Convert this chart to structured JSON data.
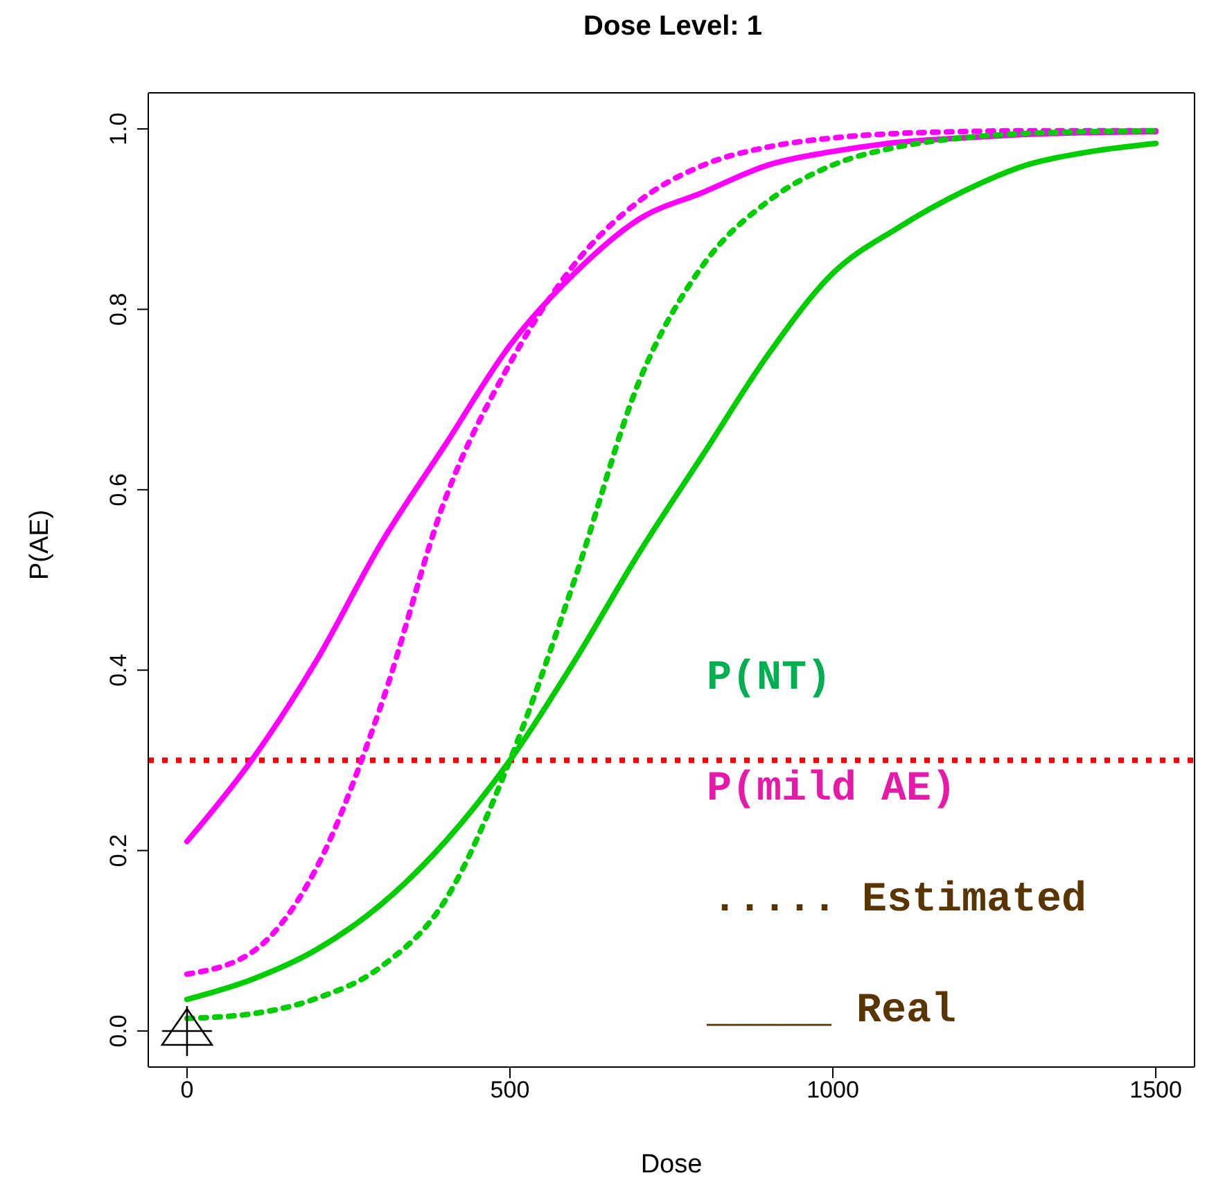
{
  "chart_data": {
    "type": "line",
    "title": "Dose Level: 1",
    "xlabel": "Dose",
    "ylabel": "P(AE)",
    "x": [
      0,
      100,
      200,
      300,
      400,
      500,
      600,
      700,
      800,
      900,
      1000,
      1100,
      1200,
      1300,
      1400,
      1500
    ],
    "series": [
      {
        "color": "#ff00ff",
        "line_style": "solid",
        "values": [
          0.21,
          0.3,
          0.41,
          0.54,
          0.65,
          0.76,
          0.84,
          0.9,
          0.93,
          0.96,
          0.975,
          0.985,
          0.99,
          0.994,
          0.996,
          0.997
        ]
      },
      {
        "color": "#ff00ff",
        "line_style": "dotted",
        "values": [
          0.063,
          0.087,
          0.18,
          0.36,
          0.59,
          0.74,
          0.85,
          0.92,
          0.96,
          0.98,
          0.99,
          0.995,
          0.997,
          0.998,
          0.998,
          0.998
        ]
      },
      {
        "color": "#00cd00",
        "line_style": "solid",
        "values": [
          0.035,
          0.057,
          0.09,
          0.14,
          0.21,
          0.3,
          0.41,
          0.53,
          0.64,
          0.75,
          0.84,
          0.89,
          0.93,
          0.96,
          0.975,
          0.984
        ]
      },
      {
        "color": "#00cd00",
        "line_style": "dotted",
        "values": [
          0.014,
          0.019,
          0.036,
          0.071,
          0.145,
          0.3,
          0.5,
          0.72,
          0.85,
          0.92,
          0.96,
          0.98,
          0.99,
          0.995,
          0.997,
          0.998
        ]
      },
      {
        "type": "scatter",
        "color": "#000000",
        "marker": "triangle",
        "x": [
          0
        ],
        "values": [
          0
        ]
      }
    ],
    "ref_lines": [
      {
        "axis": "y",
        "value": 0.3,
        "color": "#ff0000",
        "line_style": "dotted"
      }
    ],
    "annotations": [
      "P(NT)",
      "P(mild AE)",
      "..... Estimated",
      "_____ Real"
    ],
    "xlim": [
      -60,
      1560
    ],
    "ylim": [
      -0.04,
      1.04
    ],
    "xticks": [
      0,
      500,
      1000,
      1500
    ],
    "yticks": [
      {
        "value": 0,
        "label": "0.0"
      },
      0.2,
      0.4,
      0.6,
      0.8,
      {
        "value": 1,
        "label": "1.0"
      }
    ],
    "grid": false,
    "legend": false
  }
}
